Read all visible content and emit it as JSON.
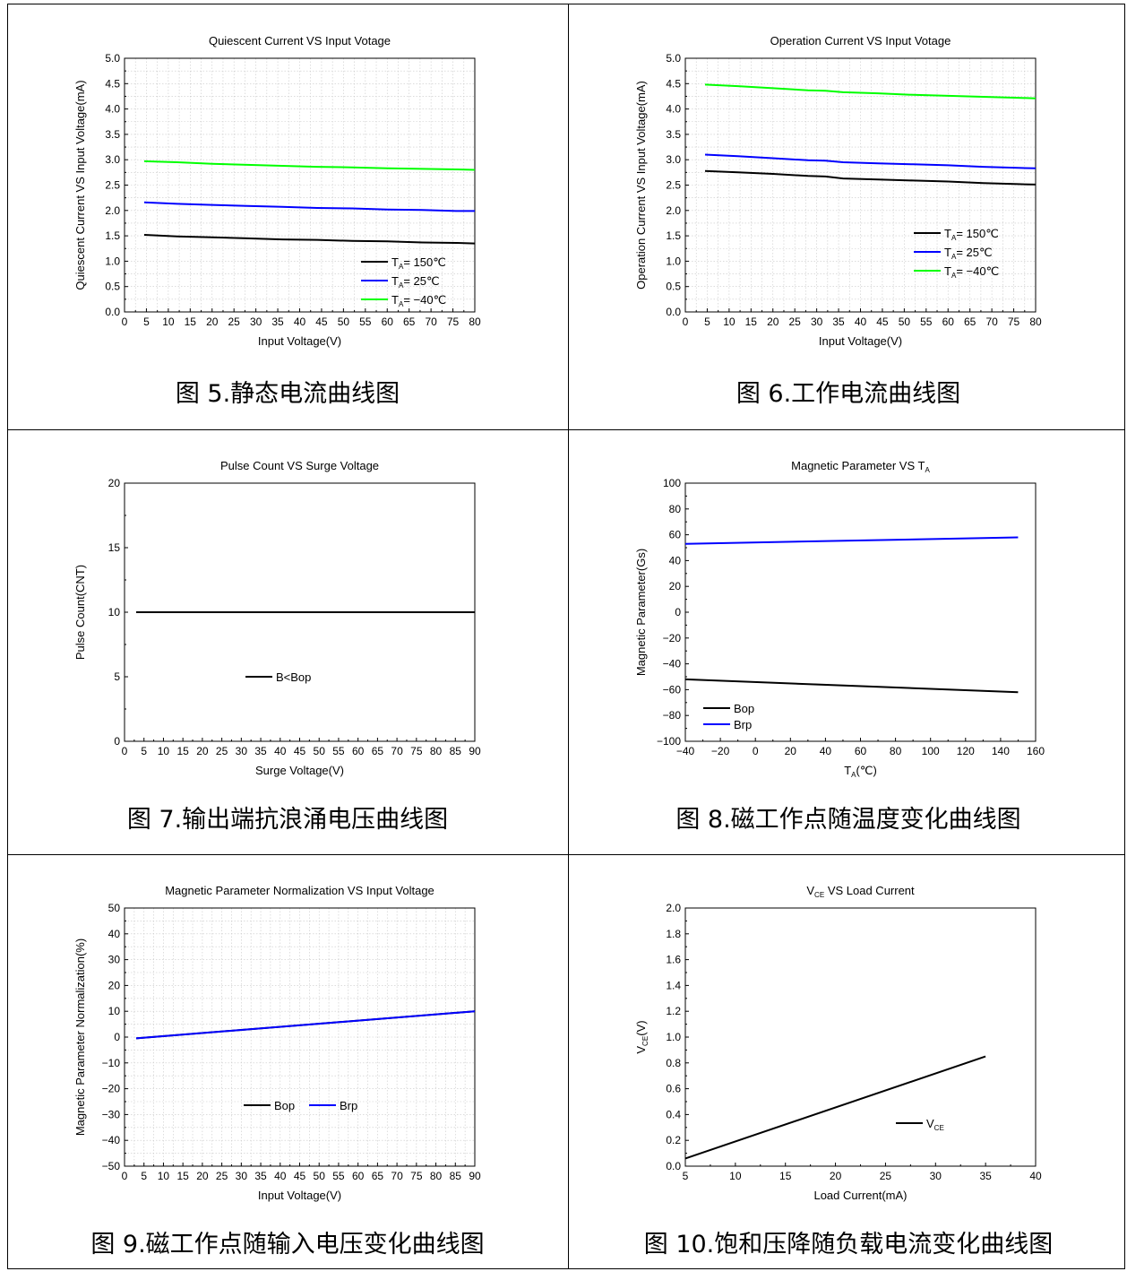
{
  "panels": [
    {
      "caption": "图 5.静态电流曲线图",
      "chart_data": {
        "type": "line",
        "title": "Quiescent Current VS Input Votage",
        "xlabel": "Input Voltage(V)",
        "ylabel": "Quiescent Current VS Input Voltage(mA)",
        "xlim": [
          0,
          80
        ],
        "ylim": [
          0,
          5.0
        ],
        "xticks": [
          "0",
          "5",
          "10",
          "15",
          "20",
          "25",
          "30",
          "35",
          "40",
          "45",
          "50",
          "55",
          "60",
          "65",
          "70",
          "75",
          "80"
        ],
        "yticks": [
          "0.0",
          "0.5",
          "1.0",
          "1.5",
          "2.0",
          "2.5",
          "3.0",
          "3.5",
          "4.0",
          "4.5",
          "5.0"
        ],
        "grid": true,
        "legend_position": "bottom-right",
        "series": [
          {
            "name": "TA= 150℃",
            "color": "#000000",
            "x": [
              4.5,
              12,
              20,
              28,
              36,
              44,
              52,
              60,
              68,
              76,
              80
            ],
            "y": [
              1.52,
              1.49,
              1.47,
              1.45,
              1.43,
              1.42,
              1.4,
              1.39,
              1.37,
              1.36,
              1.35
            ]
          },
          {
            "name": "TA= 25℃",
            "color": "#0000ff",
            "x": [
              4.5,
              12,
              20,
              28,
              36,
              44,
              52,
              60,
              68,
              76,
              80
            ],
            "y": [
              2.16,
              2.13,
              2.11,
              2.09,
              2.07,
              2.05,
              2.04,
              2.02,
              2.01,
              1.99,
              1.99
            ]
          },
          {
            "name": "TA= −40℃",
            "color": "#00ff00",
            "x": [
              4.5,
              12,
              20,
              28,
              36,
              44,
              52,
              60,
              68,
              76,
              80
            ],
            "y": [
              2.97,
              2.95,
              2.92,
              2.9,
              2.88,
              2.86,
              2.85,
              2.83,
              2.82,
              2.81,
              2.8
            ]
          }
        ]
      }
    },
    {
      "caption": "图 6.工作电流曲线图",
      "chart_data": {
        "type": "line",
        "title": "Operation Current VS Input Votage",
        "xlabel": "Input Voltage(V)",
        "ylabel": "Operation Current VS Input Voltage(mA)",
        "xlim": [
          0,
          80
        ],
        "ylim": [
          0,
          5.0
        ],
        "xticks": [
          "0",
          "5",
          "10",
          "15",
          "20",
          "25",
          "30",
          "35",
          "40",
          "45",
          "50",
          "55",
          "60",
          "65",
          "70",
          "75",
          "80"
        ],
        "yticks": [
          "0.0",
          "0.5",
          "1.0",
          "1.5",
          "2.0",
          "2.5",
          "3.0",
          "3.5",
          "4.0",
          "4.5",
          "5.0"
        ],
        "grid": true,
        "legend_position": "right",
        "series": [
          {
            "name": "TA= 150℃",
            "color": "#000000",
            "x": [
              4.5,
              12,
              20,
              28,
              32,
              36,
              44,
              52,
              60,
              68,
              76,
              80
            ],
            "y": [
              2.78,
              2.75,
              2.72,
              2.68,
              2.67,
              2.63,
              2.61,
              2.59,
              2.57,
              2.54,
              2.52,
              2.51
            ]
          },
          {
            "name": "TA= 25℃",
            "color": "#0000ff",
            "x": [
              4.5,
              12,
              20,
              28,
              32,
              36,
              44,
              52,
              60,
              68,
              76,
              80
            ],
            "y": [
              3.1,
              3.07,
              3.03,
              2.99,
              2.98,
              2.95,
              2.93,
              2.91,
              2.89,
              2.86,
              2.84,
              2.83
            ]
          },
          {
            "name": "TA= −40℃",
            "color": "#00ff00",
            "x": [
              4.5,
              12,
              20,
              28,
              32,
              36,
              44,
              52,
              60,
              68,
              76,
              80
            ],
            "y": [
              4.48,
              4.45,
              4.41,
              4.37,
              4.36,
              4.33,
              4.31,
              4.28,
              4.26,
              4.24,
              4.22,
              4.21
            ]
          }
        ]
      }
    },
    {
      "caption": "图 7.输出端抗浪涌电压曲线图",
      "chart_data": {
        "type": "line",
        "title": "Pulse Count VS Surge Voltage",
        "xlabel": "Surge Voltage(V)",
        "ylabel": "Pulse Count(CNT)",
        "xlim": [
          0,
          90
        ],
        "ylim": [
          0,
          20
        ],
        "xticks": [
          "0",
          "5",
          "10",
          "15",
          "20",
          "25",
          "30",
          "35",
          "40",
          "45",
          "50",
          "55",
          "60",
          "65",
          "70",
          "75",
          "80",
          "85",
          "90"
        ],
        "yticks": [
          "0",
          "5",
          "10",
          "15",
          "20"
        ],
        "grid": false,
        "legend_position": "center",
        "series": [
          {
            "name": "B<Bop",
            "color": "#000000",
            "x": [
              3,
              90
            ],
            "y": [
              10,
              10
            ]
          }
        ]
      }
    },
    {
      "caption": "图 8.磁工作点随温度变化曲线图",
      "chart_data": {
        "type": "line",
        "title": "Magnetic Parameter VS TA",
        "xlabel": "TA(℃)",
        "ylabel": "Magnetic Parameter(Gs)",
        "xlim": [
          -40,
          160
        ],
        "ylim": [
          -100,
          100
        ],
        "xticks": [
          "−40",
          "−20",
          "0",
          "20",
          "40",
          "60",
          "80",
          "100",
          "120",
          "140",
          "160"
        ],
        "yticks": [
          "−100",
          "−80",
          "−60",
          "−40",
          "−20",
          "0",
          "20",
          "40",
          "60",
          "80",
          "100"
        ],
        "grid": false,
        "legend_position": "bottom-left",
        "series": [
          {
            "name": "Bop",
            "color": "#000000",
            "x": [
              -40,
              150
            ],
            "y": [
              -52,
              -62
            ]
          },
          {
            "name": "Brp",
            "color": "#0000ff",
            "x": [
              -40,
              150
            ],
            "y": [
              53,
              58
            ]
          }
        ]
      }
    },
    {
      "caption": "图 9.磁工作点随输入电压变化曲线图",
      "chart_data": {
        "type": "line",
        "title": "Magnetic Parameter Normalization VS Input Voltage",
        "xlabel": "Input Voltage(V)",
        "ylabel": "Magnetic Parameter Normalization(%)",
        "xlim": [
          0,
          90
        ],
        "ylim": [
          -50,
          50
        ],
        "xticks": [
          "0",
          "5",
          "10",
          "15",
          "20",
          "25",
          "30",
          "35",
          "40",
          "45",
          "50",
          "55",
          "60",
          "65",
          "70",
          "75",
          "80",
          "85",
          "90"
        ],
        "yticks": [
          "−50",
          "−40",
          "−30",
          "−20",
          "−10",
          "0",
          "10",
          "20",
          "30",
          "40",
          "50"
        ],
        "grid": true,
        "legend_position": "center",
        "series": [
          {
            "name": "Bop",
            "color": "#000000",
            "x": [
              3,
              90
            ],
            "y": [
              -0.5,
              10
            ]
          },
          {
            "name": "Brp",
            "color": "#0000ff",
            "x": [
              3,
              90
            ],
            "y": [
              -0.5,
              10
            ]
          }
        ]
      }
    },
    {
      "caption": "图 10.饱和压降随负载电流变化曲线图",
      "chart_data": {
        "type": "line",
        "title": "VCE VS Load Current",
        "xlabel": "Load Current(mA)",
        "ylabel": "VCE(V)",
        "xlim": [
          5,
          40
        ],
        "ylim": [
          0,
          2.0
        ],
        "xticks": [
          "5",
          "10",
          "15",
          "20",
          "25",
          "30",
          "35",
          "40"
        ],
        "yticks": [
          "0.0",
          "0.2",
          "0.4",
          "0.6",
          "0.8",
          "1.0",
          "1.2",
          "1.4",
          "1.6",
          "1.8",
          "2.0"
        ],
        "grid": false,
        "legend_position": "bottom-right",
        "series": [
          {
            "name": "VCE",
            "color": "#000000",
            "x": [
              5,
              35
            ],
            "y": [
              0.06,
              0.85
            ]
          }
        ]
      }
    }
  ]
}
